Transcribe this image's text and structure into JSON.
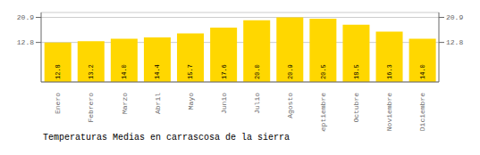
{
  "chart_data": {
    "type": "bar",
    "title": "Temperaturas Medias en carrascosa de la sierra",
    "categories": [
      "Enero",
      "Febrero",
      "Marzo",
      "Abril",
      "Mayo",
      "Junio",
      "Julio",
      "Agosto",
      "Septiembre",
      "Octubre",
      "Noviembre",
      "Diciembre"
    ],
    "values": [
      12.8,
      13.2,
      14.0,
      14.4,
      15.7,
      17.6,
      20.0,
      20.9,
      20.5,
      18.5,
      16.3,
      14.0
    ],
    "value_labels": [
      "12.8",
      "13.2",
      "14.0",
      "14.4",
      "15.7",
      "17.6",
      "20.0",
      "20.9",
      "20.5",
      "18.5",
      "16.3",
      "14.0"
    ],
    "color": "#FFD700",
    "ylim": [
      0,
      22.5
    ],
    "yticks": [
      12.8,
      20.9
    ],
    "y2lim": [
      0,
      22.5
    ],
    "y2ticks": [
      12.8,
      20.9
    ],
    "grid": true,
    "data_labels": true
  }
}
